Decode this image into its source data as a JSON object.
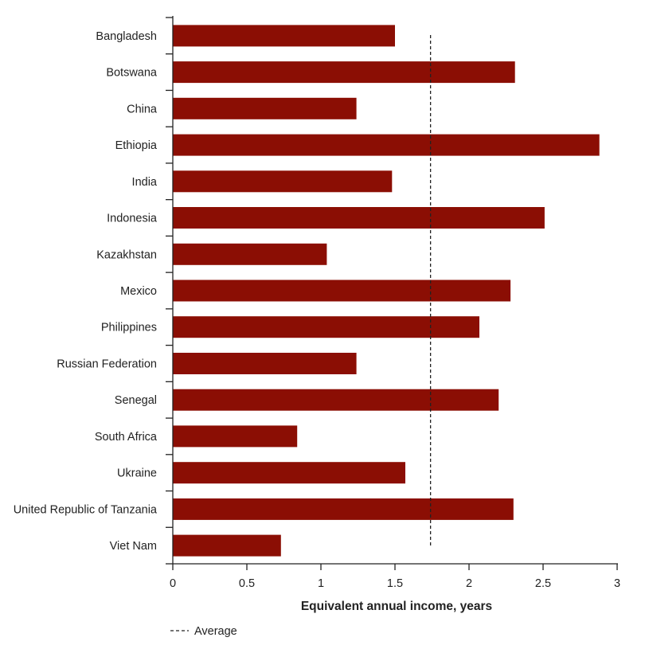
{
  "chart_data": {
    "type": "bar",
    "orientation": "horizontal",
    "categories": [
      "Bangladesh",
      "Botswana",
      "China",
      "Ethiopia",
      "India",
      "Indonesia",
      "Kazakhstan",
      "Mexico",
      "Philippines",
      "Russian Federation",
      "Senegal",
      "South Africa",
      "Ukraine",
      "United Republic of Tanzania",
      "Viet Nam"
    ],
    "values": [
      1.5,
      2.31,
      1.24,
      2.88,
      1.48,
      2.51,
      1.04,
      2.28,
      2.07,
      1.24,
      2.2,
      0.84,
      1.57,
      2.3,
      0.73
    ],
    "average": 1.74,
    "xlabel": "Equivalent annual income, years",
    "ylabel": "",
    "xlim": [
      0,
      3
    ],
    "xticks": [
      0,
      0.5,
      1,
      1.5,
      2,
      2.5,
      3
    ],
    "xtick_labels": [
      "0",
      "0.5",
      "1",
      "1.5",
      "2",
      "2.5",
      "3"
    ],
    "grid": false,
    "legend": {
      "placement": "bottom-left",
      "entries": [
        {
          "label": "Average",
          "style": "dashed-line"
        }
      ]
    },
    "colors": {
      "bar": "#8b0e04",
      "axis": "#222222",
      "average_line": "#222222"
    }
  }
}
